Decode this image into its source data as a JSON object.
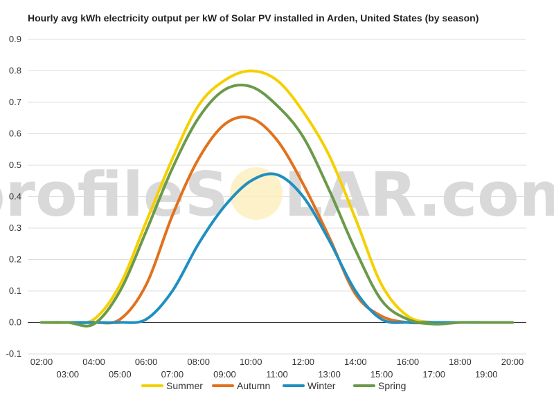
{
  "chart_data": {
    "type": "line",
    "title": "Hourly avg kWh electricity output per kW of Solar PV installed in Arden, United States (by season)",
    "watermark": {
      "text_left": "profileS",
      "text_right": "LAR.com"
    },
    "x": [
      "02:00",
      "03:00",
      "04:00",
      "05:00",
      "06:00",
      "07:00",
      "08:00",
      "09:00",
      "10:00",
      "11:00",
      "12:00",
      "13:00",
      "14:00",
      "15:00",
      "16:00",
      "17:00",
      "18:00",
      "19:00",
      "20:00"
    ],
    "x_tick_labels_row1": [
      "02:00",
      "04:00",
      "06:00",
      "08:00",
      "10:00",
      "12:00",
      "14:00",
      "16:00",
      "18:00",
      "20:00"
    ],
    "x_tick_labels_row2": [
      "03:00",
      "05:00",
      "07:00",
      "09:00",
      "11:00",
      "13:00",
      "15:00",
      "17:00",
      "19:00"
    ],
    "ylim": [
      -0.1,
      0.9
    ],
    "y_ticks": [
      "-0.1",
      "0.0",
      "0.1",
      "0.2",
      "0.3",
      "0.4",
      "0.5",
      "0.6",
      "0.7",
      "0.8",
      "0.9"
    ],
    "grid": true,
    "legend_position": "bottom",
    "series": [
      {
        "name": "Summer",
        "color": "#f5d000",
        "values": [
          0,
          0,
          0.01,
          0.12,
          0.32,
          0.52,
          0.69,
          0.77,
          0.8,
          0.77,
          0.67,
          0.53,
          0.33,
          0.12,
          0.02,
          0,
          0,
          0,
          0
        ]
      },
      {
        "name": "Autumn",
        "color": "#e2711d",
        "values": [
          0,
          0,
          0,
          0.01,
          0.12,
          0.34,
          0.52,
          0.63,
          0.65,
          0.58,
          0.44,
          0.27,
          0.09,
          0.02,
          0,
          0,
          0,
          0,
          0
        ]
      },
      {
        "name": "Winter",
        "color": "#1f8fc1",
        "values": [
          0,
          0,
          0,
          0,
          0.01,
          0.1,
          0.25,
          0.37,
          0.45,
          0.47,
          0.4,
          0.26,
          0.1,
          0.01,
          0,
          0,
          0,
          0,
          0
        ]
      },
      {
        "name": "Spring",
        "color": "#6a9a4a",
        "values": [
          0,
          0,
          -0.005,
          0.1,
          0.29,
          0.49,
          0.65,
          0.74,
          0.75,
          0.69,
          0.59,
          0.42,
          0.23,
          0.07,
          0.01,
          -0.005,
          0,
          0,
          0
        ]
      }
    ]
  }
}
